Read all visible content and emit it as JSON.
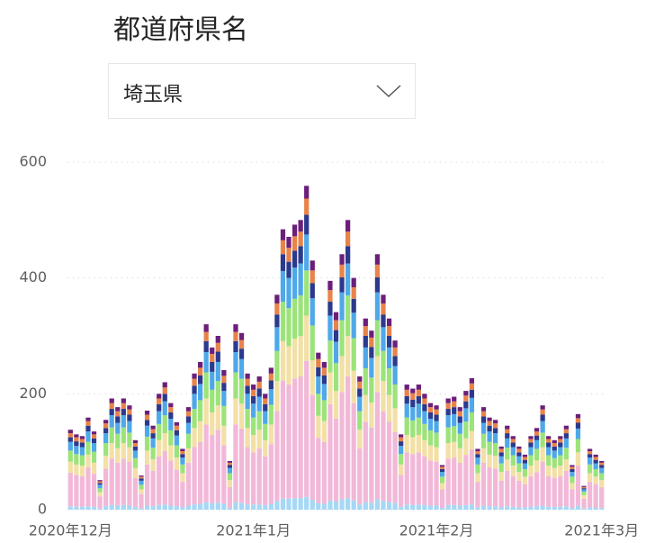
{
  "slicer": {
    "title": "都道府県名",
    "selected": "埼玉県"
  },
  "chart_data": {
    "type": "stacked_bar",
    "categories": [
      "2020年12月",
      null,
      null,
      null,
      null,
      null,
      null,
      null,
      null,
      null,
      null,
      null,
      null,
      null,
      null,
      null,
      null,
      null,
      null,
      null,
      null,
      null,
      null,
      null,
      null,
      null,
      null,
      null,
      null,
      null,
      null,
      "2021年1月",
      null,
      null,
      null,
      null,
      null,
      null,
      null,
      null,
      null,
      null,
      null,
      null,
      null,
      null,
      null,
      null,
      null,
      null,
      null,
      null,
      null,
      null,
      null,
      null,
      null,
      null,
      null,
      null,
      null,
      null,
      "2021年2月",
      null,
      null,
      null,
      null,
      null,
      null,
      null,
      null,
      null,
      null,
      null,
      null,
      null,
      null,
      null,
      null,
      null,
      null,
      null,
      null,
      null,
      null,
      null,
      null,
      null,
      null,
      null,
      "2021年3月"
    ],
    "ylim": [
      0,
      600
    ],
    "yticks": [
      0,
      200,
      400,
      600
    ],
    "grid": true,
    "series": [
      {
        "color": "#a6d8f5",
        "values": [
          6,
          5,
          5,
          6,
          5,
          2,
          6,
          8,
          7,
          8,
          7,
          5,
          2,
          7,
          6,
          8,
          9,
          7,
          6,
          4,
          7,
          9,
          10,
          13,
          11,
          12,
          10,
          3,
          13,
          12,
          9,
          9,
          9,
          8,
          10,
          15,
          19,
          19,
          20,
          20,
          22,
          17,
          11,
          10,
          16,
          14,
          18,
          20,
          16,
          9,
          13,
          12,
          18,
          15,
          13,
          12,
          5,
          9,
          8,
          9,
          8,
          7,
          7,
          3,
          8,
          8,
          7,
          8,
          9,
          4,
          7,
          6,
          6,
          4,
          6,
          5,
          4,
          4,
          5,
          6,
          7,
          5,
          5,
          5,
          6,
          3,
          7,
          2,
          4,
          4,
          3
        ]
      },
      {
        "color": "#f2b8d8",
        "values": [
          58,
          55,
          53,
          67,
          57,
          21,
          65,
          80,
          74,
          80,
          76,
          50,
          25,
          71,
          61,
          84,
          92,
          78,
          63,
          44,
          74,
          99,
          107,
          134,
          118,
          126,
          101,
          36,
          134,
          128,
          99,
          90,
          97,
          84,
          103,
          155,
          204,
          197,
          206,
          210,
          235,
          181,
          113,
          107,
          166,
          143,
          185,
          210,
          168,
          97,
          139,
          130,
          185,
          155,
          139,
          122,
          55,
          90,
          88,
          90,
          84,
          78,
          76,
          32,
          80,
          82,
          74,
          86,
          95,
          44,
          74,
          67,
          65,
          46,
          61,
          53,
          46,
          40,
          53,
          59,
          76,
          53,
          50,
          53,
          61,
          32,
          69,
          17,
          44,
          40,
          36
        ]
      },
      {
        "color": "#f3e0a6",
        "values": [
          19,
          18,
          18,
          22,
          19,
          7,
          22,
          27,
          25,
          27,
          25,
          17,
          8,
          24,
          20,
          28,
          31,
          26,
          21,
          15,
          25,
          33,
          36,
          45,
          39,
          42,
          34,
          12,
          45,
          43,
          33,
          30,
          32,
          28,
          34,
          52,
          68,
          66,
          69,
          70,
          78,
          60,
          38,
          36,
          55,
          48,
          62,
          70,
          56,
          32,
          46,
          43,
          62,
          52,
          46,
          41,
          18,
          30,
          29,
          30,
          28,
          26,
          25,
          11,
          27,
          27,
          25,
          29,
          32,
          15,
          25,
          22,
          22,
          15,
          20,
          18,
          15,
          13,
          18,
          20,
          25,
          18,
          17,
          18,
          20,
          11,
          23,
          6,
          15,
          13,
          12
        ]
      },
      {
        "color": "#9ce37a",
        "values": [
          19,
          18,
          18,
          22,
          19,
          7,
          22,
          27,
          25,
          27,
          25,
          17,
          8,
          24,
          20,
          28,
          31,
          26,
          21,
          15,
          25,
          33,
          36,
          45,
          39,
          42,
          34,
          12,
          45,
          43,
          33,
          30,
          32,
          28,
          34,
          52,
          68,
          66,
          69,
          70,
          78,
          60,
          38,
          36,
          55,
          48,
          62,
          70,
          56,
          32,
          46,
          43,
          62,
          52,
          46,
          41,
          18,
          30,
          29,
          30,
          28,
          26,
          25,
          11,
          27,
          27,
          25,
          29,
          32,
          15,
          25,
          22,
          22,
          15,
          20,
          18,
          15,
          13,
          18,
          20,
          25,
          18,
          17,
          18,
          20,
          11,
          23,
          6,
          15,
          13,
          12
        ]
      },
      {
        "color": "#4fa8e8",
        "values": [
          15,
          14,
          14,
          18,
          15,
          6,
          17,
          21,
          19,
          21,
          20,
          13,
          7,
          19,
          16,
          22,
          24,
          20,
          17,
          12,
          19,
          26,
          28,
          35,
          31,
          33,
          26,
          9,
          35,
          34,
          26,
          24,
          25,
          22,
          27,
          41,
          53,
          52,
          54,
          55,
          62,
          47,
          30,
          28,
          43,
          37,
          48,
          55,
          44,
          25,
          36,
          34,
          48,
          41,
          36,
          32,
          14,
          24,
          23,
          24,
          22,
          20,
          20,
          8,
          21,
          21,
          19,
          23,
          25,
          12,
          19,
          18,
          17,
          12,
          16,
          14,
          12,
          10,
          14,
          15,
          20,
          14,
          13,
          14,
          16,
          8,
          18,
          4,
          12,
          10,
          9
        ]
      },
      {
        "color": "#2b3a8c",
        "values": [
          8,
          8,
          8,
          10,
          8,
          3,
          9,
          11,
          11,
          11,
          11,
          7,
          4,
          10,
          9,
          12,
          13,
          11,
          9,
          6,
          11,
          14,
          15,
          19,
          17,
          18,
          14,
          5,
          19,
          18,
          14,
          13,
          14,
          12,
          15,
          22,
          29,
          28,
          29,
          30,
          34,
          26,
          16,
          15,
          24,
          20,
          26,
          30,
          24,
          14,
          20,
          19,
          26,
          22,
          20,
          17,
          8,
          13,
          13,
          13,
          12,
          11,
          11,
          5,
          11,
          12,
          11,
          12,
          14,
          6,
          11,
          10,
          9,
          7,
          9,
          8,
          7,
          6,
          8,
          8,
          11,
          8,
          7,
          8,
          9,
          5,
          10,
          2,
          6,
          6,
          5
        ]
      },
      {
        "color": "#e8834a",
        "values": [
          7,
          7,
          6,
          8,
          7,
          3,
          8,
          10,
          9,
          10,
          9,
          6,
          3,
          9,
          7,
          10,
          11,
          9,
          8,
          5,
          9,
          12,
          13,
          16,
          14,
          15,
          12,
          4,
          16,
          15,
          12,
          11,
          12,
          10,
          12,
          19,
          24,
          24,
          25,
          25,
          28,
          22,
          14,
          13,
          20,
          17,
          22,
          25,
          20,
          12,
          17,
          16,
          22,
          19,
          17,
          15,
          7,
          11,
          11,
          11,
          10,
          9,
          9,
          4,
          10,
          10,
          9,
          10,
          11,
          5,
          9,
          8,
          8,
          6,
          7,
          6,
          6,
          5,
          6,
          7,
          9,
          6,
          6,
          6,
          7,
          4,
          8,
          2,
          5,
          5,
          4
        ]
      },
      {
        "color": "#6b1f7a",
        "values": [
          6,
          5,
          5,
          6,
          5,
          2,
          6,
          8,
          7,
          8,
          7,
          5,
          2,
          7,
          6,
          8,
          9,
          7,
          6,
          4,
          7,
          9,
          10,
          13,
          11,
          12,
          10,
          3,
          13,
          12,
          9,
          9,
          9,
          8,
          10,
          15,
          19,
          19,
          20,
          20,
          22,
          17,
          11,
          10,
          16,
          14,
          18,
          20,
          16,
          9,
          13,
          12,
          18,
          15,
          13,
          12,
          5,
          9,
          8,
          9,
          8,
          7,
          7,
          3,
          8,
          8,
          7,
          8,
          9,
          4,
          7,
          6,
          6,
          4,
          6,
          5,
          4,
          4,
          5,
          6,
          7,
          5,
          5,
          5,
          6,
          3,
          7,
          2,
          4,
          4,
          3
        ]
      }
    ]
  }
}
